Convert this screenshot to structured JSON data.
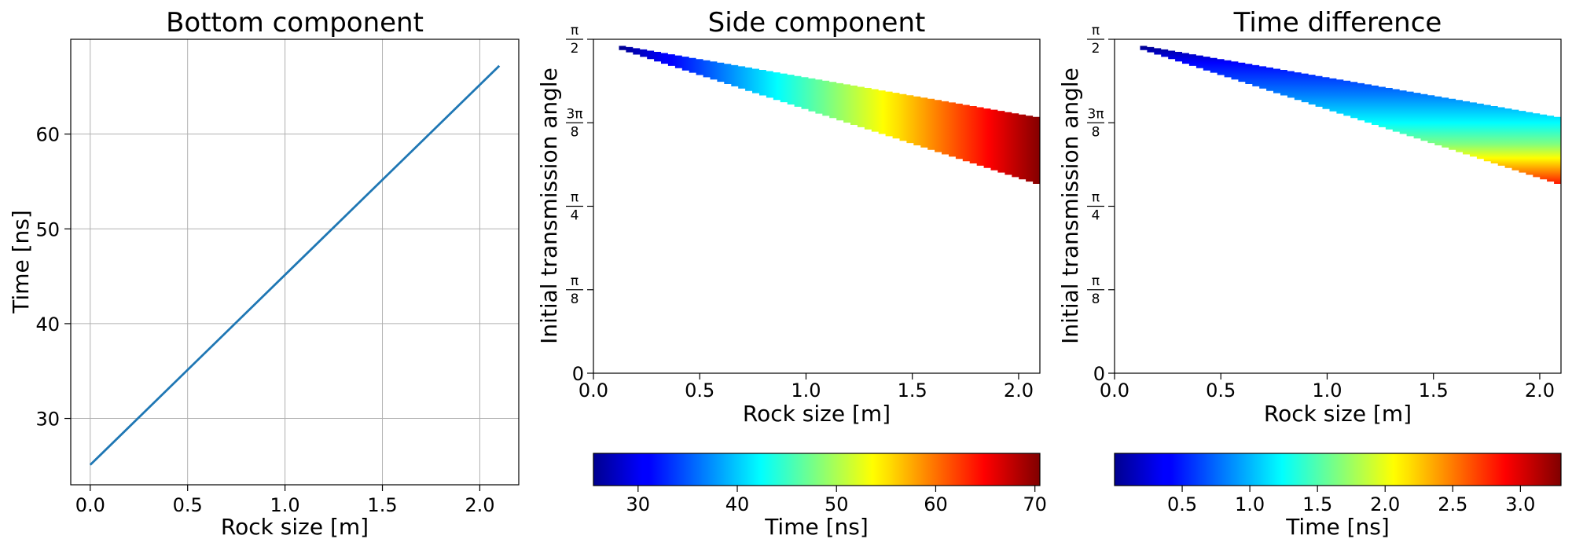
{
  "colormap": "jet",
  "chart_data": [
    {
      "type": "line",
      "title": "Bottom component",
      "xlabel": "Rock size [m]",
      "ylabel": "Time [ns]",
      "xlim": [
        -0.1,
        2.2
      ],
      "ylim": [
        23,
        70
      ],
      "grid": true,
      "xticks": [
        "0.0",
        "0.5",
        "1.0",
        "1.5",
        "2.0"
      ],
      "yticks": [
        "30",
        "40",
        "50",
        "60"
      ],
      "series": [
        {
          "color": "#1f77b4",
          "x": [
            0.0,
            2.1
          ],
          "y": [
            25.1,
            67.2
          ]
        }
      ]
    },
    {
      "type": "heatmap",
      "title": "Side component",
      "xlabel": "Rock size [m]",
      "ylabel": "Initial transmission angle",
      "xlim": [
        0.0,
        2.1
      ],
      "ylim": [
        0,
        1.5708
      ],
      "xticks": [
        "0.0",
        "0.5",
        "1.0",
        "1.5",
        "2.0"
      ],
      "yticks": [
        "0",
        "π/8",
        "π/4",
        "3π/8",
        "π/2"
      ],
      "grid": false,
      "region": {
        "x": [
          0.12,
          2.1
        ],
        "upper_angle": [
          1.54,
          1.2
        ],
        "lower_angle": [
          1.52,
          0.88
        ]
      },
      "colorbar": {
        "label": "Time [ns]",
        "range": [
          25.5,
          70.5
        ],
        "ticks": [
          "30",
          "40",
          "50",
          "60",
          "70"
        ],
        "values": [
          30,
          40,
          50,
          60,
          70
        ]
      }
    },
    {
      "type": "heatmap",
      "title": "Time difference",
      "xlabel": "Rock size [m]",
      "ylabel": "Initial transmission angle",
      "xlim": [
        0.0,
        2.1
      ],
      "ylim": [
        0,
        1.5708
      ],
      "xticks": [
        "0.0",
        "0.5",
        "1.0",
        "1.5",
        "2.0"
      ],
      "yticks": [
        "0",
        "π/8",
        "π/4",
        "3π/8",
        "π/2"
      ],
      "grid": false,
      "region": {
        "x": [
          0.12,
          2.1
        ],
        "upper_angle": [
          1.54,
          1.2
        ],
        "lower_angle": [
          1.52,
          0.88
        ]
      },
      "colorbar": {
        "label": "Time [ns]",
        "range": [
          0.0,
          3.3
        ],
        "ticks": [
          "0.5",
          "1.0",
          "1.5",
          "2.0",
          "2.5",
          "3.0"
        ],
        "values": [
          0.5,
          1.0,
          1.5,
          2.0,
          2.5,
          3.0
        ]
      }
    }
  ]
}
